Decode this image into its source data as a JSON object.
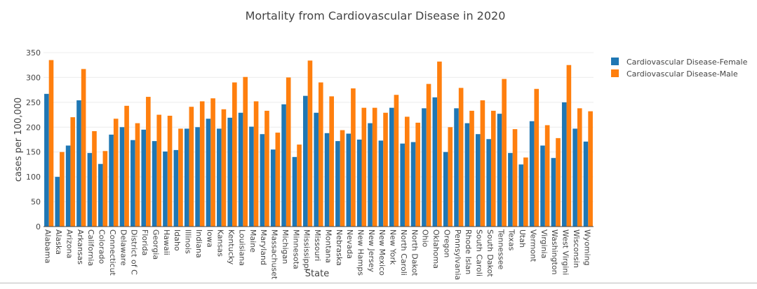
{
  "chart_data": {
    "type": "bar",
    "title": "Mortality from Cardiovascular Disease in 2020",
    "xlabel": "State",
    "ylabel": "cases per 100,000",
    "ylim": [
      0,
      350
    ],
    "yticks": [
      0,
      50,
      100,
      150,
      200,
      250,
      300,
      350
    ],
    "grid": true,
    "legend_position": "top-right",
    "categories": [
      "Alabama",
      "Alaska",
      "Arizona",
      "Arkansas",
      "California",
      "Colorado",
      "Connecticut",
      "Delaware",
      "District of Columbia",
      "Florida",
      "Georgia",
      "Hawaii",
      "Idaho",
      "Illinois",
      "Indiana",
      "Iowa",
      "Kansas",
      "Kentucky",
      "Louisiana",
      "Maine",
      "Maryland",
      "Massachusetts",
      "Michigan",
      "Minnesota",
      "Mississippi",
      "Missouri",
      "Montana",
      "Nebraska",
      "Nevada",
      "New Hampshire",
      "New Jersey",
      "New Mexico",
      "New York",
      "North Carolina",
      "North Dakota",
      "Ohio",
      "Oklahoma",
      "Oregon",
      "Pennsylvania",
      "Rhode Island",
      "South Carolina",
      "South Dakota",
      "Tennessee",
      "Texas",
      "Utah",
      "Vermont",
      "Virginia",
      "Washington",
      "West Virginia",
      "Wisconsin",
      "Wyoming"
    ],
    "category_tick_labels": [
      "Alabama",
      "Alaska",
      "Arizona",
      "Arkansas",
      "California",
      "Colorado",
      "Connecticut",
      "Delaware",
      "District of C",
      "Florida",
      "Georgia",
      "Hawaii",
      "Idaho",
      "Illinois",
      "Indiana",
      "Iowa",
      "Kansas",
      "Kentucky",
      "Louisiana",
      "Maine",
      "Maryland",
      "Massachuset",
      "Michigan",
      "Minnesota",
      "Mississippi",
      "Missouri",
      "Montana",
      "Nebraska",
      "Nevada",
      "New Hamps",
      "New Jersey",
      "New Mexico",
      "New York",
      "North Caroli",
      "North Dakot",
      "Ohio",
      "Oklahoma",
      "Oregon",
      "Pennsylvania",
      "Rhode Islan",
      "South Caroli",
      "South Dakot",
      "Tennessee",
      "Texas",
      "Utah",
      "Vermont",
      "Virginia",
      "Washington",
      "West Virgini",
      "Wisconsin",
      "Wyoming"
    ],
    "series": [
      {
        "name": "Cardiovascular Disease-Female",
        "color": "#1f77b4",
        "values": [
          267,
          100,
          163,
          254,
          148,
          126,
          185,
          200,
          174,
          195,
          172,
          151,
          154,
          197,
          200,
          217,
          197,
          219,
          229,
          201,
          186,
          155,
          246,
          140,
          263,
          229,
          188,
          172,
          187,
          175,
          208,
          173,
          239,
          167,
          170,
          238,
          260,
          150,
          238,
          208,
          186,
          176,
          227,
          148,
          125,
          212,
          163,
          138,
          250,
          197,
          171
        ]
      },
      {
        "name": "Cardiovascular Disease-Male",
        "color": "#ff7f0e",
        "values": [
          335,
          150,
          220,
          317,
          192,
          152,
          217,
          243,
          208,
          261,
          225,
          223,
          197,
          241,
          252,
          258,
          236,
          290,
          301,
          252,
          233,
          189,
          300,
          165,
          334,
          290,
          262,
          194,
          278,
          239,
          239,
          229,
          265,
          221,
          209,
          287,
          332,
          200,
          279,
          233,
          254,
          233,
          297,
          196,
          139,
          277,
          204,
          178,
          325,
          238,
          232
        ]
      }
    ]
  }
}
